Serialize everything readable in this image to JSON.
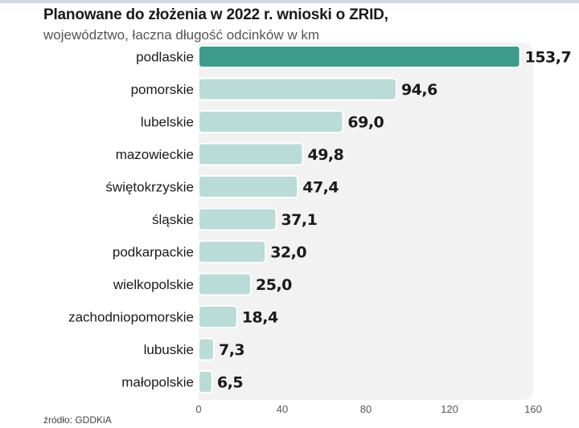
{
  "header": {
    "title": "Planowane do złożenia w 2022 r. wnioski o ZRID,",
    "subtitle": "województwo, łaczna długość odcinków w km"
  },
  "footer": {
    "source": "źródło: GDDKiA"
  },
  "colors": {
    "highlight_bar": "#3e9c8c",
    "bar": "#b9dcd8",
    "bar_outline": "#ffffff",
    "plot_background": "#f2f2f2",
    "label_text": "#1a1a1a",
    "value_text": "#1a1a1a",
    "tick_text": "#555555"
  },
  "chart_data": {
    "type": "bar",
    "orientation": "horizontal",
    "title": "Planowane do złożenia w 2022 r. wnioski o ZRID,",
    "subtitle": "województwo, łaczna długość odcinków w km",
    "categories": [
      "podlaskie",
      "pomorskie",
      "lubelskie",
      "mazowieckie",
      "świętokrzyskie",
      "śląskie",
      "podkarpackie",
      "wielkopolskie",
      "zachodniopomorskie",
      "lubuskie",
      "małopolskie"
    ],
    "values": [
      153.7,
      94.6,
      69.0,
      49.8,
      47.4,
      37.1,
      32.0,
      25.0,
      18.4,
      7.3,
      6.5
    ],
    "value_labels": [
      "153,7",
      "94,6",
      "69,0",
      "49,8",
      "47,4",
      "37,1",
      "32,0",
      "25,0",
      "18,4",
      "7,3",
      "6,5"
    ],
    "highlight_index": 0,
    "xlim": [
      0,
      160
    ],
    "xticks": [
      0,
      40,
      80,
      120,
      160
    ],
    "xtick_labels": [
      "0",
      "40",
      "80",
      "120",
      "160"
    ],
    "grid": false,
    "legend": "none",
    "source": "źródło: GDDKiA"
  }
}
